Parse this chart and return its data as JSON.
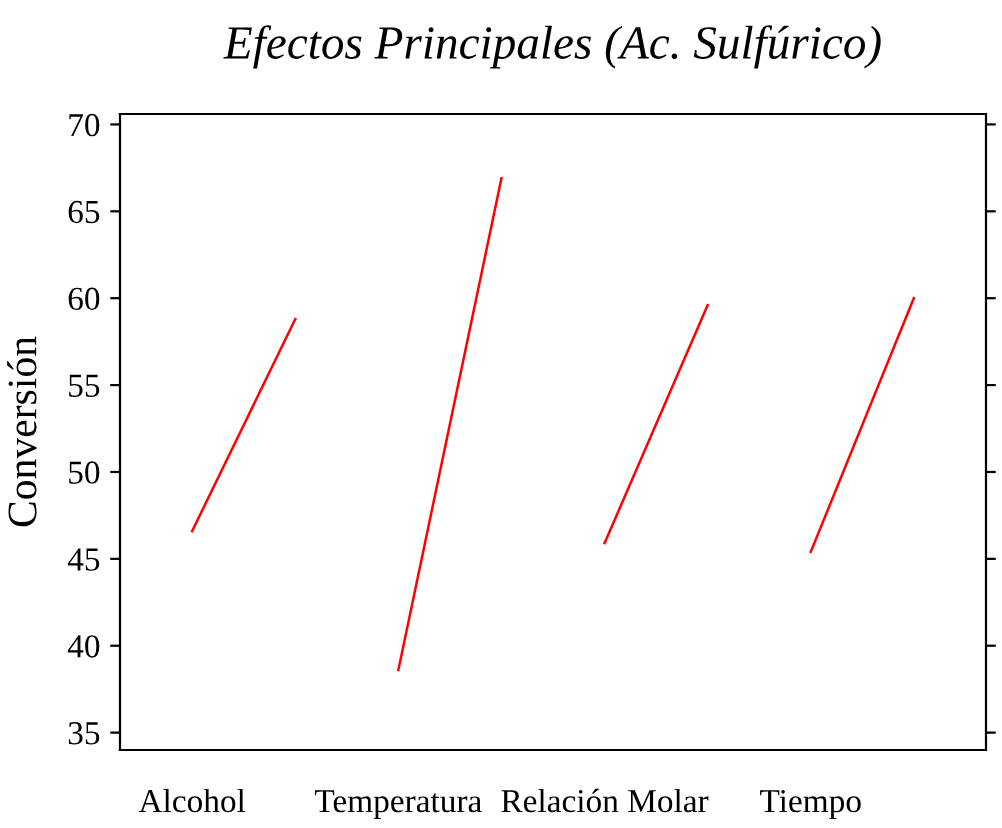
{
  "chart_data": {
    "type": "line",
    "title": "Efectos Principales (Ac. Sulfúrico)",
    "ylabel": "Conversión",
    "categories": [
      "Alcohol",
      null,
      "Temperatura",
      null,
      "Relación Molar",
      null,
      "Tiempo",
      null
    ],
    "ylim": [
      34,
      70.6
    ],
    "yticks": [
      35,
      40,
      45,
      50,
      55,
      60,
      65,
      70
    ],
    "series": [
      {
        "color": "#ff0000",
        "values": [
          46.6,
          58.8,
          null,
          null,
          null,
          null,
          null,
          null
        ]
      },
      {
        "color": "#ff0000",
        "values": [
          null,
          null,
          38.6,
          66.9,
          null,
          null,
          null,
          null
        ]
      },
      {
        "color": "#ff0000",
        "values": [
          null,
          null,
          null,
          null,
          45.9,
          59.6,
          null,
          null
        ]
      },
      {
        "color": "#ff0000",
        "values": [
          null,
          null,
          null,
          null,
          null,
          null,
          45.4,
          60.0
        ]
      }
    ],
    "grid": false,
    "legend": false
  }
}
